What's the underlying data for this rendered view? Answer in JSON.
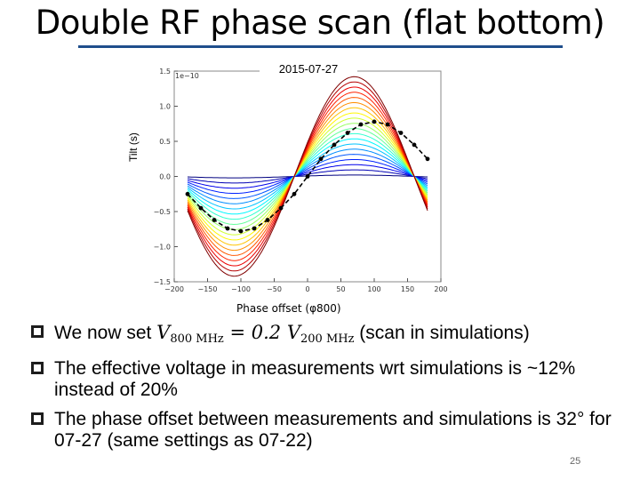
{
  "slide": {
    "title": "Double RF phase scan (flat bottom)",
    "page_number": "25",
    "accent_color": "#1f4e8c"
  },
  "figure": {
    "date_label": "2015-07-27",
    "ylabel": "Tilt (s)",
    "xlabel": "Phase offset (φ800)",
    "y_exponent": "1e−10",
    "y_ticks": [
      "1.5",
      "1.0",
      "0.5",
      "0.0",
      "−0.5",
      "−1.0",
      "−1.5"
    ],
    "x_ticks": [
      "−200",
      "−150",
      "−100",
      "−50",
      "0",
      "50",
      "100",
      "150",
      "200"
    ]
  },
  "chart_data": {
    "type": "line",
    "x_range": [
      -200,
      200
    ],
    "y_range": [
      -1.5,
      1.5
    ],
    "y_scale_factor": "1e-10",
    "simulation_curves": {
      "x_range": [
        -180,
        180
      ],
      "count": 20,
      "min_amplitude": 0.02,
      "max_amplitude": 1.42,
      "phase_offset_deg": 20,
      "colormap": "jet"
    },
    "measurement_series": {
      "style": "black dashed with dots",
      "x": [
        -180,
        -160,
        -140,
        -120,
        -100,
        -80,
        -60,
        -40,
        -20,
        0,
        20,
        40,
        60,
        80,
        100,
        120,
        140,
        160,
        180
      ],
      "y": [
        -0.25,
        -0.45,
        -0.62,
        -0.74,
        -0.78,
        -0.74,
        -0.62,
        -0.45,
        -0.25,
        0.0,
        0.25,
        0.45,
        0.62,
        0.74,
        0.78,
        0.74,
        0.62,
        0.45,
        0.25
      ]
    }
  },
  "bullets": {
    "b1": {
      "pre": "We now set ",
      "v": "V",
      "s800": "800 MHz",
      "eq": " = 0.2 ",
      "s200": "200 MHz",
      "post": " (scan in simulations)"
    },
    "b2": "The effective voltage in measurements wrt simulations is ~12% instead of 20%",
    "b3": "The phase offset between measurements and simulations is 32° for 07-27 (same settings as 07-22)"
  }
}
